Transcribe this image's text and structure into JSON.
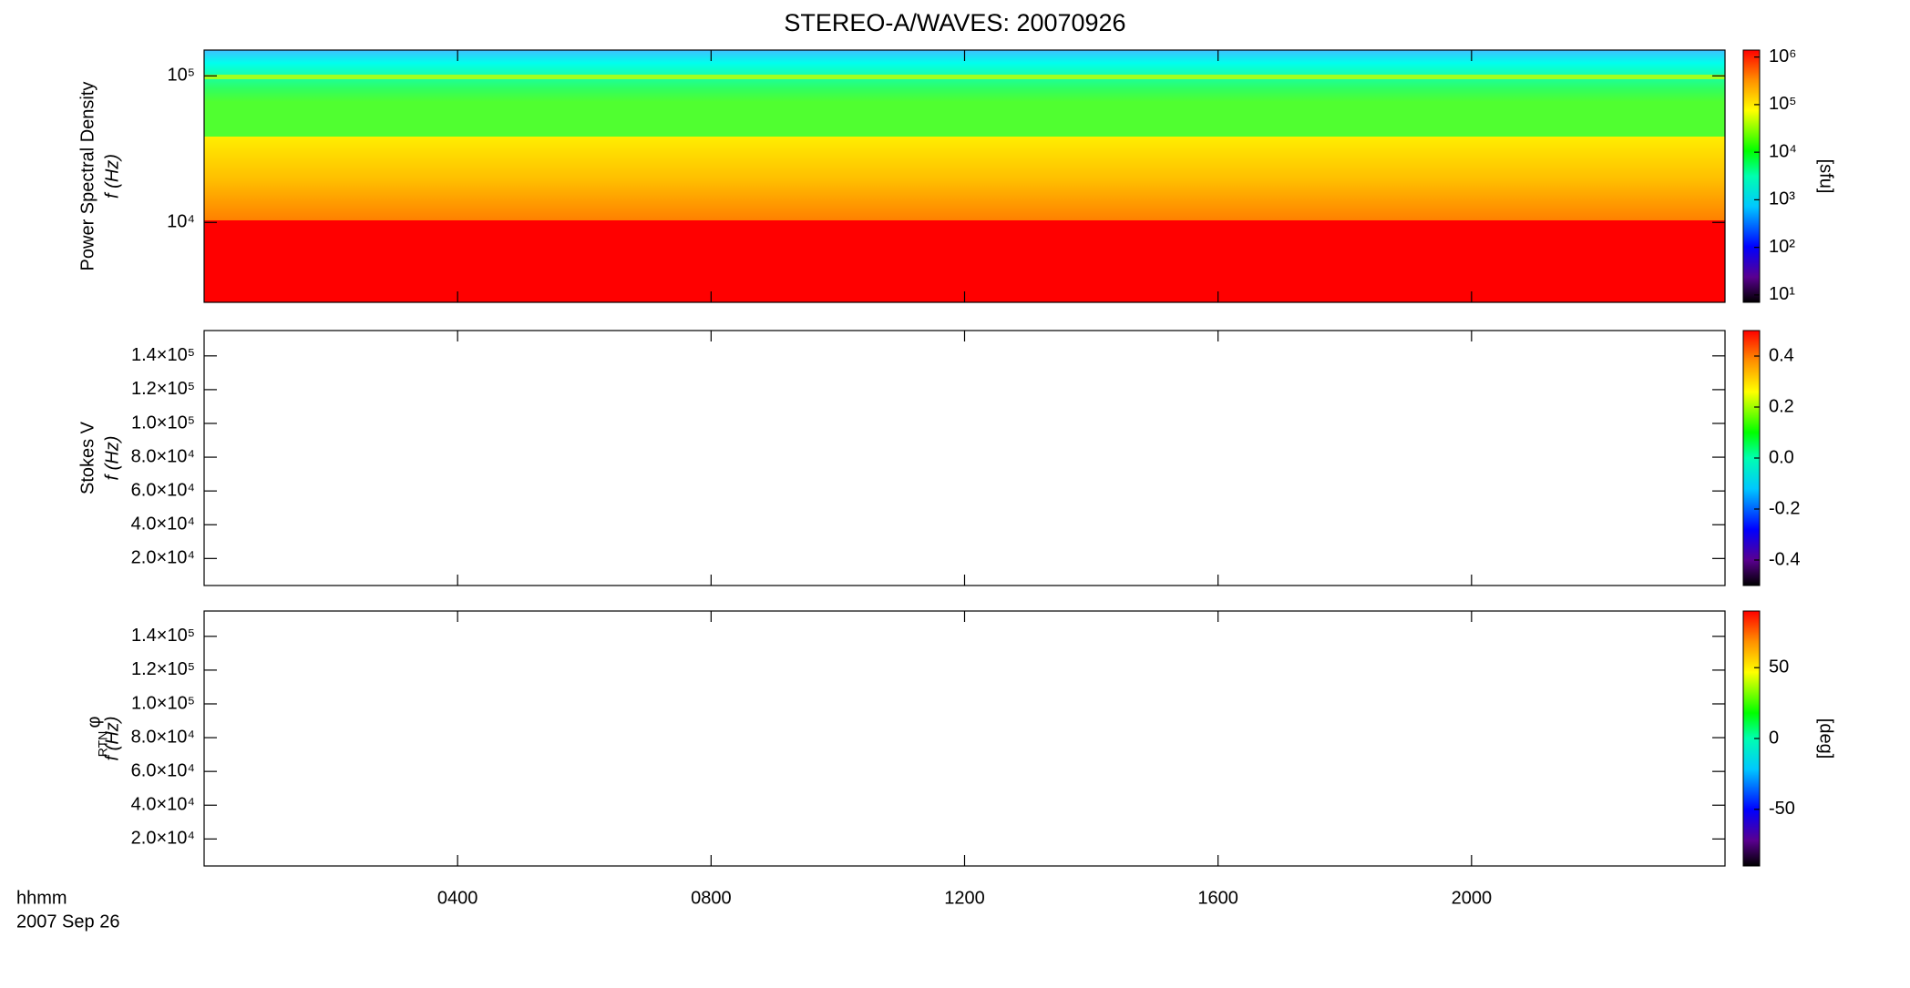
{
  "title": "STEREO-A/WAVES: 20070926",
  "x_axis": {
    "label": "hhmm",
    "date": "2007 Sep 26",
    "xlim": [
      0,
      2400
    ],
    "xticks": [
      {
        "value": 400,
        "label": "0400"
      },
      {
        "value": 800,
        "label": "0800"
      },
      {
        "value": 1200,
        "label": "1200"
      },
      {
        "value": 1600,
        "label": "1600"
      },
      {
        "value": 2000,
        "label": "2000"
      }
    ]
  },
  "chart_data": [
    {
      "type": "heatmap",
      "ylabel": "Power Spectral Density",
      "yunit": "f (Hz)",
      "yscale": "log",
      "ylim": [
        2850,
        150000
      ],
      "yticks": [
        {
          "value": 10000,
          "label": "10⁴"
        },
        {
          "value": 100000,
          "label": "10⁵"
        }
      ],
      "colorbar": {
        "scale": "log",
        "lim": [
          7,
          1400000
        ],
        "label": "[sfu]",
        "ticks": [
          {
            "value": 10,
            "label": "10¹"
          },
          {
            "value": 100,
            "label": "10²"
          },
          {
            "value": 1000,
            "label": "10³"
          },
          {
            "value": 10000,
            "label": "10⁴"
          },
          {
            "value": 100000,
            "label": "10⁵"
          },
          {
            "value": 1000000,
            "label": "10⁶"
          }
        ]
      }
    },
    {
      "type": "heatmap",
      "ylabel": "Stokes V",
      "yunit": "f (Hz)",
      "yscale": "linear",
      "ylim": [
        4000,
        155000
      ],
      "yticks": [
        {
          "value": 20000,
          "label": "2.0×10⁴"
        },
        {
          "value": 40000,
          "label": "4.0×10⁴"
        },
        {
          "value": 60000,
          "label": "6.0×10⁴"
        },
        {
          "value": 80000,
          "label": "8.0×10⁴"
        },
        {
          "value": 100000,
          "label": "1.0×10⁵"
        },
        {
          "value": 120000,
          "label": "1.2×10⁵"
        },
        {
          "value": 140000,
          "label": "1.4×10⁵"
        }
      ],
      "colorbar": {
        "scale": "linear",
        "lim": [
          -0.5,
          0.5
        ],
        "ticks": [
          -0.4,
          -0.2,
          {
            "value": 0,
            "label": "0.0"
          },
          0.2,
          0.4
        ]
      }
    },
    {
      "type": "heatmap",
      "ylabel": "φ",
      "ylabel_sub": "RTN",
      "yunit": "f (Hz)",
      "yscale": "linear",
      "ylim": [
        4000,
        155000
      ],
      "yticks": [
        {
          "value": 20000,
          "label": "2.0×10⁴"
        },
        {
          "value": 40000,
          "label": "4.0×10⁴"
        },
        {
          "value": 60000,
          "label": "6.0×10⁴"
        },
        {
          "value": 80000,
          "label": "8.0×10⁴"
        },
        {
          "value": 100000,
          "label": "1.0×10⁵"
        },
        {
          "value": 120000,
          "label": "1.2×10⁵"
        },
        {
          "value": 140000,
          "label": "1.4×10⁵"
        }
      ],
      "colorbar": {
        "scale": "linear",
        "lim": [
          -90,
          90
        ],
        "label": "[deg]",
        "ticks": [
          -50,
          0,
          50
        ]
      }
    }
  ]
}
